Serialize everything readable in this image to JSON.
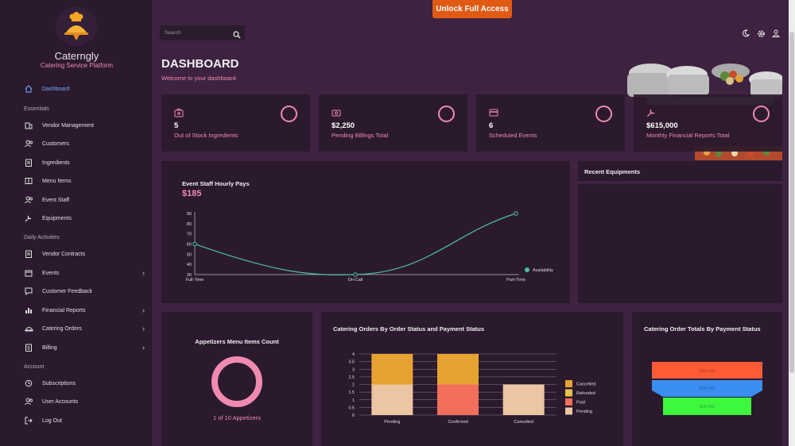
{
  "app": {
    "name": "Caterngly",
    "tagline": "Catering Service Platform",
    "unlock_label": "Unlock Full Access"
  },
  "search": {
    "placeholder": "Search"
  },
  "sidebar": {
    "dashboard": "Dashboard",
    "sections": {
      "essentials": "Essentials",
      "daily": "Daily Activities",
      "account": "Account"
    },
    "essentials": [
      "Vendor Management",
      "Customers",
      "Ingredients",
      "Menu Items",
      "Event Staff",
      "Equipments"
    ],
    "daily": [
      "Vendor Contracts",
      "Events",
      "Customer Feedback",
      "Financial Reports",
      "Catering Orders",
      "Billing"
    ],
    "account": [
      "Subscriptions",
      "User Accounts",
      "Log Out"
    ],
    "chevron": "›"
  },
  "page": {
    "title": "DASHBOARD",
    "subtitle": "Welcome to your dashboard"
  },
  "stats": [
    {
      "value": "5",
      "label": "Out of Stock Ingredients",
      "icon": "package-icon"
    },
    {
      "value": "$2,250",
      "label": "Pending Billings Total",
      "icon": "money-icon"
    },
    {
      "value": "6",
      "label": "Scheduled Events",
      "icon": "card-icon"
    },
    {
      "value": "$615,000",
      "label": "Monthly Financial Reports Total",
      "icon": "wrench-icon"
    }
  ],
  "staff_pays": {
    "title": "Event Staff Hourly Pays",
    "value": "$185"
  },
  "recent_equipments": {
    "title": "Recent Equipments"
  },
  "appetizers": {
    "title": "Appetizers Menu Items Count",
    "caption": "1 of 10 Appetizers",
    "fraction": 0.1
  },
  "orders_chart": {
    "title": "Catering Orders By Order Status and Payment Status"
  },
  "totals_chart": {
    "title": "Catering Order Totals By Payment Status"
  },
  "chart_data": [
    {
      "type": "line",
      "title": "Event Staff Hourly Pays",
      "categories": [
        "Full-Time",
        "On-Call",
        "Part-Time"
      ],
      "series": [
        {
          "name": "Availability",
          "values": [
            60,
            30,
            90
          ]
        }
      ],
      "yticks": [
        "30",
        "40",
        "50",
        "60",
        "70",
        "80",
        "90"
      ],
      "ylim": [
        30,
        90
      ],
      "color": "#4bbfa5"
    },
    {
      "type": "bar",
      "title": "Catering Orders By Order Status and Payment Status",
      "categories": [
        "Pending",
        "Confirmed",
        "Cancelled"
      ],
      "series": [
        {
          "name": "Pending",
          "values": [
            2,
            0,
            2
          ],
          "color": "#ecc5a2"
        },
        {
          "name": "Paid",
          "values": [
            0,
            2,
            0
          ],
          "color": "#f26f5c"
        },
        {
          "name": "Refunded",
          "values": [
            0,
            0,
            0
          ],
          "color": "#e9c44a"
        },
        {
          "name": "Cancelled",
          "values": [
            2,
            2,
            0
          ],
          "color": "#e6a331"
        }
      ],
      "legend_order": [
        "Cancelled",
        "Refunded",
        "Paid",
        "Pending"
      ],
      "yticks": [
        "0",
        "0.5",
        "1",
        "1.5",
        "2",
        "2.5",
        "3",
        "3.5",
        "4"
      ],
      "ylim": [
        0,
        4
      ]
    },
    {
      "type": "funnel",
      "title": "Catering Order Totals By Payment Status",
      "series": [
        {
          "label": "$30,200",
          "color": "#ff5a36"
        },
        {
          "label": "$38,000",
          "color": "#3a8ef2"
        },
        {
          "label": "$24,200",
          "color": "#3ef83e"
        }
      ]
    }
  ]
}
